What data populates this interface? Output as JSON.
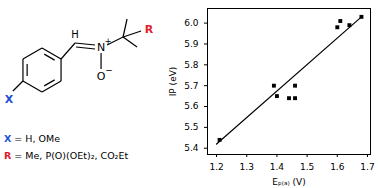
{
  "chart_data": {
    "type": "scatter",
    "xlabel": "Eₚ₍ₐ₎ (V)",
    "ylabel": "IP (eV)",
    "x": [
      1.21,
      1.39,
      1.4,
      1.44,
      1.46,
      1.46,
      1.6,
      1.61,
      1.64,
      1.68
    ],
    "values": [
      5.44,
      5.7,
      5.65,
      5.64,
      5.64,
      5.7,
      5.98,
      6.01,
      5.99,
      6.03
    ],
    "color": "#000000",
    "marker": "square",
    "trend_line": {
      "x": [
        1.2,
        1.68
      ],
      "y": [
        5.42,
        6.03
      ]
    },
    "xlim": [
      1.17,
      1.71
    ],
    "ylim": [
      5.37,
      6.07
    ],
    "xticks": [
      1.2,
      1.3,
      1.4,
      1.5,
      1.6,
      1.7
    ],
    "yticks": [
      5.4,
      5.5,
      5.6,
      5.7,
      5.8,
      5.9,
      {
        "value": 6,
        "label": "6.0"
      }
    ]
  },
  "structure": {
    "atoms": {
      "h": "H",
      "n": "N",
      "n_charge": "+",
      "o": "O",
      "o_charge": "−"
    },
    "substituents": [
      {
        "symbol": "X",
        "color": "#1f4fd8",
        "text": " = H, OMe"
      },
      {
        "symbol": "R",
        "color": "#e0202e",
        "text": " = Me, P(O)(OEt)₂, CO₂Et"
      }
    ]
  }
}
